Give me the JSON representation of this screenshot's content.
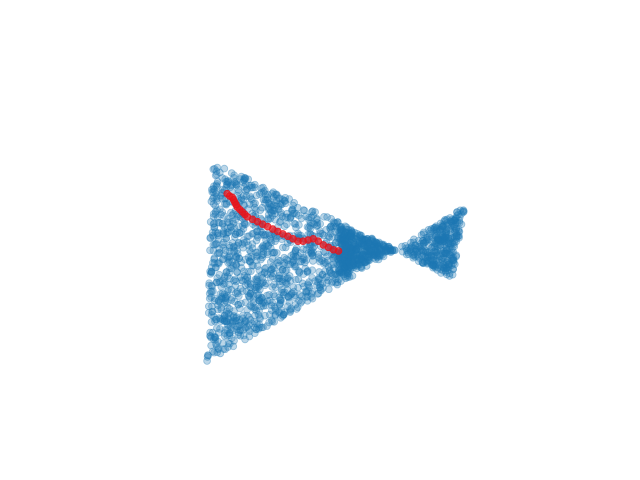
{
  "chart_data": {
    "type": "scatter",
    "title": "",
    "xlabel": "",
    "ylabel": "",
    "axes_visible": false,
    "grid": false,
    "legend": "none",
    "xlim": [
      0,
      1
    ],
    "ylim": [
      0,
      1
    ],
    "series": [
      {
        "color": "#1f77b4",
        "alpha": 0.3,
        "marker": "circle",
        "distribution": "bow-tie",
        "point_count": 1500,
        "left_triangle": {
          "apex_upper": [
            0.0,
            0.82
          ],
          "apex_lower": [
            -0.02,
            0.0
          ],
          "waist": [
            0.73,
            0.46
          ]
        },
        "right_triangle": {
          "waist": [
            0.73,
            0.46
          ],
          "apex_upper": [
            1.0,
            0.64
          ],
          "apex_lower": [
            0.95,
            0.34
          ]
        }
      },
      {
        "color": "#e8141b",
        "alpha": 0.75,
        "marker": "circle",
        "points": [
          [
            0.06,
            0.69
          ],
          [
            0.07,
            0.68
          ],
          [
            0.08,
            0.675
          ],
          [
            0.085,
            0.665
          ],
          [
            0.09,
            0.655
          ],
          [
            0.095,
            0.645
          ],
          [
            0.1,
            0.635
          ],
          [
            0.11,
            0.625
          ],
          [
            0.12,
            0.615
          ],
          [
            0.13,
            0.605
          ],
          [
            0.14,
            0.595
          ],
          [
            0.16,
            0.585
          ],
          [
            0.18,
            0.575
          ],
          [
            0.2,
            0.565
          ],
          [
            0.22,
            0.555
          ],
          [
            0.24,
            0.545
          ],
          [
            0.26,
            0.535
          ],
          [
            0.28,
            0.525
          ],
          [
            0.3,
            0.515
          ],
          [
            0.32,
            0.505
          ],
          [
            0.34,
            0.495
          ],
          [
            0.36,
            0.495
          ],
          [
            0.38,
            0.5
          ],
          [
            0.4,
            0.505
          ],
          [
            0.42,
            0.495
          ],
          [
            0.44,
            0.48
          ],
          [
            0.46,
            0.47
          ],
          [
            0.48,
            0.46
          ],
          [
            0.5,
            0.455
          ]
        ]
      }
    ]
  }
}
